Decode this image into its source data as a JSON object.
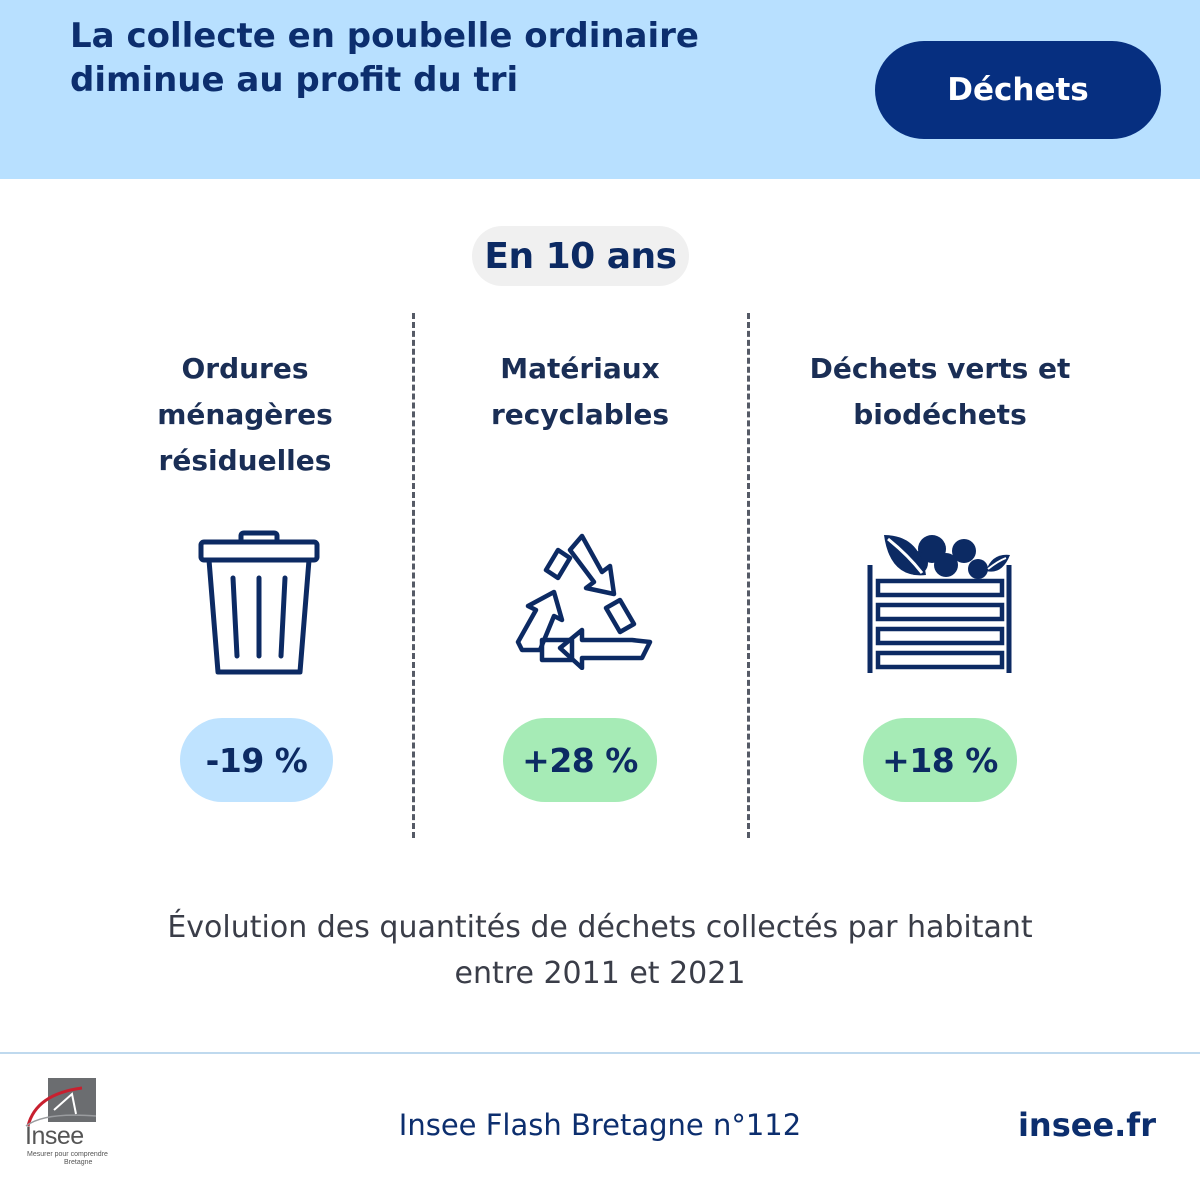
{
  "header": {
    "title": "La collecte en poubelle ordinaire diminue au profit du tri",
    "theme_label": "Déchets"
  },
  "period": "En 10 ans",
  "columns": [
    {
      "label": "Ordures ménagères résiduelles",
      "icon": "trash-can-icon",
      "change": "-19 %",
      "change_color": "#bfe3ff"
    },
    {
      "label": "Matériaux recyclables",
      "icon": "recycle-icon",
      "change": "+28 %",
      "change_color": "#a6ebb6"
    },
    {
      "label": "Déchets verts et biodéchets",
      "icon": "green-waste-crate-icon",
      "change": "+18 %",
      "change_color": "#a6ebb6"
    }
  ],
  "caption": {
    "line1": "Évolution des quantités de déchets collectés par habitant",
    "line2": "entre 2011 et 2021"
  },
  "footer": {
    "logo": {
      "word": "Insee",
      "tagline": "Mesurer pour comprendre",
      "region": "Bretagne"
    },
    "publication": "Insee Flash Bretagne n°112",
    "site": "insee.fr"
  },
  "colors": {
    "header_bg": "#b8e0ff",
    "accent_navy": "#062f80",
    "text_navy": "#0c2e6e"
  }
}
